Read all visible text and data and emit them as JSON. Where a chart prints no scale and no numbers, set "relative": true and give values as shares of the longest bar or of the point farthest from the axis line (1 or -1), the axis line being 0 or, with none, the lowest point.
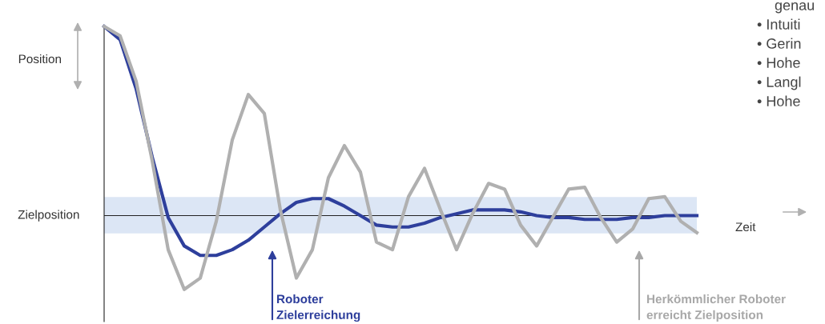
{
  "chart_data": {
    "type": "line",
    "relative": true,
    "xlabel": "Zeit",
    "ylabel": "Position",
    "categories": [
      null,
      null,
      null,
      null,
      null,
      null,
      null,
      null,
      null,
      null,
      null,
      null,
      null,
      null,
      null,
      null,
      null,
      null,
      null,
      null,
      null,
      null,
      null,
      null,
      null,
      null,
      null,
      null,
      null,
      null,
      null,
      null,
      null,
      null,
      null,
      null,
      null,
      null
    ],
    "series": [
      {
        "color": "#2e3f9c",
        "values": [
          1.0,
          0.93,
          0.67,
          0.31,
          -0.01,
          -0.16,
          -0.21,
          -0.21,
          -0.18,
          -0.13,
          -0.06,
          0.01,
          0.07,
          0.09,
          0.09,
          0.05,
          0.0,
          -0.05,
          -0.06,
          -0.06,
          -0.04,
          -0.01,
          0.01,
          0.03,
          0.03,
          0.03,
          0.02,
          0.0,
          -0.01,
          -0.01,
          -0.02,
          -0.02,
          -0.02,
          -0.01,
          -0.01,
          0.0,
          0.0,
          0.0
        ]
      },
      {
        "color": "#b0b0b0",
        "values": [
          1.0,
          0.95,
          0.71,
          0.29,
          -0.18,
          -0.39,
          -0.33,
          -0.03,
          0.4,
          0.64,
          0.54,
          0.03,
          -0.33,
          -0.18,
          0.2,
          0.37,
          0.23,
          -0.14,
          -0.18,
          0.1,
          0.25,
          0.03,
          -0.18,
          0.01,
          0.17,
          0.14,
          -0.05,
          -0.16,
          -0.01,
          0.14,
          0.15,
          -0.01,
          -0.14,
          -0.07,
          0.09,
          0.1,
          -0.03,
          -0.09
        ]
      }
    ],
    "ref_lines": [
      {
        "axis": "y",
        "value": 0,
        "label": "Zielposition",
        "color": "#222222"
      }
    ],
    "bands": [
      {
        "axis": "y",
        "from": -0.094,
        "to": 0.098,
        "color": "#dce6f5"
      }
    ],
    "marker": "none",
    "line_style": "solid",
    "legend": false,
    "annotations": [
      "Roboter\nZielerreichung",
      "Herkömmlicher Roboter\nerreicht Zielposition",
      "genau",
      "• Intuiti",
      "• Gerin",
      "• Hohe",
      "• Langl",
      "• Hohe"
    ]
  }
}
